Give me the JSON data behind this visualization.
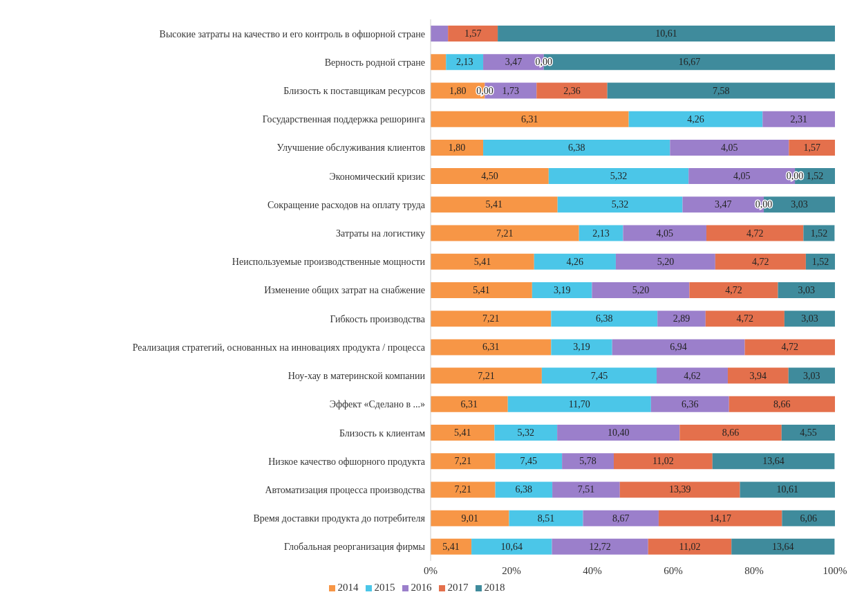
{
  "chart_data": {
    "type": "bar",
    "orientation": "horizontal",
    "stacked": true,
    "categories": [
      "Высокие затраты на качество и его контроль в офшорной стране",
      "Верность родной стране",
      "Близость к поставщикам ресурсов",
      "Государственная поддержка решоринга",
      "Улучшение обслуживания клиентов",
      "Экономический кризис",
      "Сокращение расходов на оплату труда",
      "Затраты на логистику",
      "Неиспользуемые производственные мощности",
      "Изменение общих затрат на снабжение",
      "Гибкость производства",
      "Реализация стратегий, основанных на инновациях продукта / процесса",
      "Ноу-хау в материнской компании",
      "Эффект «Сделано в ...»",
      "Близость к клиентам",
      "Низкое качество офшорного продукта",
      "Автоматизация процесса производства",
      "Время доставки продукта до потребителя",
      "Глобальная реорганизация фирмы"
    ],
    "series": [
      {
        "name": "2014",
        "color": "#f79646",
        "values": [
          null,
          3.8,
          13.4,
          49.0,
          13.0,
          29.2,
          31.4,
          36.7,
          25.6,
          25.1,
          29.8,
          29.8,
          27.5,
          19.1,
          15.8,
          16.0,
          16.0,
          19.4,
          10.1
        ]
      },
      {
        "name": "2015",
        "color": "#4bc6e8",
        "values": [
          null,
          9.2,
          0,
          33.1,
          46.2,
          34.6,
          30.9,
          10.9,
          20.2,
          14.8,
          26.3,
          15.1,
          28.4,
          35.4,
          15.5,
          16.5,
          14.1,
          18.3,
          19.9
        ]
      },
      {
        "name": "2016",
        "color": "#9b7fcb",
        "values": [
          4.3,
          15.0,
          12.8,
          17.9,
          29.4,
          26.3,
          20.1,
          20.6,
          24.6,
          24.1,
          11.9,
          32.8,
          17.6,
          19.3,
          30.3,
          12.8,
          16.7,
          18.7,
          23.8
        ]
      },
      {
        "name": "2017",
        "color": "#e4704c",
        "values": [
          12.3,
          0,
          17.5,
          null,
          11.4,
          0,
          0,
          24.0,
          22.4,
          21.9,
          19.5,
          22.3,
          15.0,
          26.2,
          25.2,
          24.4,
          29.7,
          30.5,
          20.6
        ]
      },
      {
        "name": "2018",
        "color": "#3f8b9c",
        "values": [
          83.4,
          72.0,
          56.3,
          null,
          null,
          9.9,
          17.6,
          7.7,
          7.2,
          14.1,
          12.5,
          null,
          11.5,
          null,
          13.2,
          30.2,
          23.5,
          13.1,
          25.5
        ]
      }
    ],
    "xlim": [
      0,
      100
    ],
    "xticks": [
      {
        "value": 0,
        "label": "0%"
      },
      {
        "value": 20,
        "label": "20%"
      },
      {
        "value": 40,
        "label": "40%"
      },
      {
        "value": 60,
        "label": "60%"
      },
      {
        "value": 80,
        "label": "80%"
      },
      {
        "value": 100,
        "label": "100%"
      }
    ],
    "legend": "bottom",
    "annotations": [
      "1,57",
      "10,61",
      "2,13",
      "3,47",
      "0,00",
      "16,67",
      "1,80",
      "0,00",
      "1,73",
      "2,36",
      "7,58",
      "6,31",
      "4,26",
      "2,31",
      "1,80",
      "6,38",
      "4,05",
      "1,57",
      "4,50",
      "5,32",
      "4,05",
      "0,00",
      "1,52",
      "5,41",
      "5,32",
      "3,47",
      "0,00",
      "3,03",
      "7,21",
      "2,13",
      "4,05",
      "4,72",
      "1,52",
      "5,41",
      "4,26",
      "5,20",
      "4,72",
      "1,52",
      "5,41",
      "3,19",
      "5,20",
      "4,72",
      "3,03",
      "7,21",
      "6,38",
      "2,89",
      "4,72",
      "3,03",
      "6,31",
      "3,19",
      "6,94",
      "4,72",
      "7,21",
      "7,45",
      "4,62",
      "3,94",
      "3,03",
      "6,31",
      "11,70",
      "6,36",
      "8,66",
      "5,41",
      "5,32",
      "10,40",
      "8,66",
      "4,55",
      "7,21",
      "7,45",
      "5,78",
      "11,02",
      "13,64",
      "7,21",
      "6,38",
      "7,51",
      "13,39",
      "10,61",
      "9,01",
      "8,51",
      "8,67",
      "14,17",
      "6,06",
      "5,41",
      "10,64",
      "12,72",
      "11,02",
      "13,64"
    ]
  }
}
